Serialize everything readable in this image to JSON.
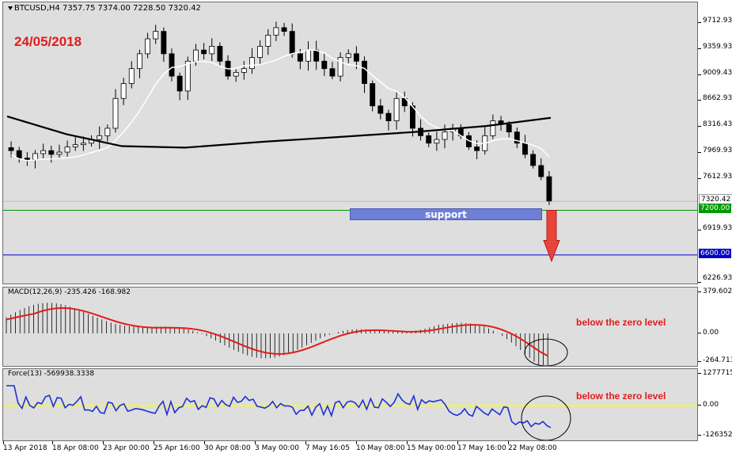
{
  "symbol_title": "BTCUSD,H4  7357.75 7374.00 7228.50 7320.42",
  "date_annotation": "24/05/2018",
  "support_label": "support",
  "macd_title": "MACD(12,26,9) -235.426 -168.982",
  "force_title": "Force(13) -569938.3338",
  "macd_note": "below the zero level",
  "force_note": "below the zero level",
  "colors": {
    "pane_bg": "#dedede",
    "macd_signal": "#e31b1b",
    "force_line": "#1e2fd6",
    "zero_level": "#ffff00",
    "support_box": "#6e7fd8",
    "arrow": "#e8443a",
    "line_7200": "#009900",
    "line_6600": "#0000c8"
  },
  "price_axis": {
    "labels": [
      "9712.93",
      "9359.93",
      "9009.43",
      "8662.93",
      "8316.43",
      "7969.93",
      "7612.93",
      "6919.93",
      "6226.93"
    ],
    "current_price": "7320.42",
    "level_green": "7200.00",
    "level_blue": "6600.00"
  },
  "macd_axis": {
    "labels": [
      "379.602",
      "0.00",
      "-264.713"
    ]
  },
  "force_axis": {
    "labels": [
      "1277715.1",
      "0.00",
      "-1263529"
    ]
  },
  "x_axis": {
    "labels": [
      "13 Apr 2018",
      "18 Apr 08:00",
      "23 Apr 00:00",
      "25 Apr 16:00",
      "30 Apr 08:00",
      "3 May 00:00",
      "7 May 16:05",
      "10 May 08:00",
      "15 May 00:00",
      "17 May 16:00",
      "22 May 08:00"
    ]
  },
  "chart_data": {
    "type": "candlestick",
    "symbol": "BTCUSD",
    "timeframe": "H4",
    "last_bar": {
      "open": 7357.75,
      "high": 7374.0,
      "low": 7228.5,
      "close": 7320.42
    },
    "ylim": [
      6226.93,
      9712.93
    ],
    "close_series": [
      8000,
      7900,
      7880,
      7960,
      8000,
      7950,
      7980,
      8050,
      8080,
      8100,
      8150,
      8200,
      8300,
      8700,
      8900,
      9100,
      9300,
      9500,
      9600,
      9300,
      9000,
      8800,
      9200,
      9350,
      9300,
      9400,
      9200,
      9000,
      9050,
      9100,
      9250,
      9400,
      9550,
      9650,
      9600,
      9300,
      9200,
      9350,
      9200,
      9100,
      9000,
      9250,
      9300,
      9200,
      8900,
      8600,
      8500,
      8400,
      8700,
      8600,
      8300,
      8200,
      8100,
      8150,
      8250,
      8300,
      8200,
      8050,
      8000,
      8200,
      8400,
      8350,
      8250,
      8100,
      7950,
      7800,
      7650,
      7320
    ],
    "levels": [
      {
        "name": "resistance-line",
        "value": 7200.0
      },
      {
        "name": "target-line",
        "value": 6600.0
      }
    ],
    "indicators": [
      {
        "name": "MACD(12,26,9)",
        "main": -235.426,
        "signal": -168.982,
        "range": [
          -264.713,
          379.602
        ]
      },
      {
        "name": "Force(13)",
        "value": -569938.3338,
        "range": [
          -1263529,
          1277715.1
        ]
      }
    ]
  }
}
